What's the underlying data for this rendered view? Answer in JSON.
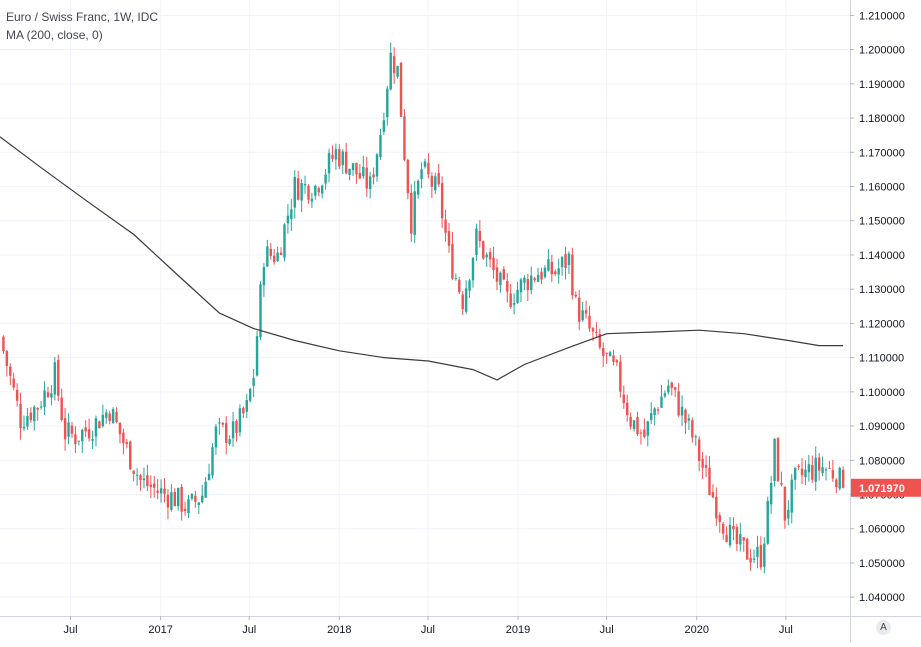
{
  "legend": {
    "title": "Euro / Swiss Franc, 1W, IDC",
    "indicator": "MA (200, close, 0)"
  },
  "auto_button": "A",
  "colors": {
    "up": "#26a69a",
    "down": "#ef5350",
    "ma": "#3b3b3b",
    "grid": "#f0f3fa",
    "axis_text": "#131722"
  },
  "price_badge": "1.071970",
  "chart_data": {
    "type": "candlestick",
    "title": "Euro / Swiss Franc, 1W, IDC",
    "x_ticks": [
      {
        "date": "2016-07-01",
        "label": "Jul"
      },
      {
        "date": "2017-01-01",
        "label": "2017"
      },
      {
        "date": "2017-07-01",
        "label": "Jul"
      },
      {
        "date": "2018-01-01",
        "label": "2018"
      },
      {
        "date": "2018-07-01",
        "label": "Jul"
      },
      {
        "date": "2019-01-01",
        "label": "2019"
      },
      {
        "date": "2019-07-01",
        "label": "Jul"
      },
      {
        "date": "2020-01-01",
        "label": "2020"
      },
      {
        "date": "2020-07-01",
        "label": "Jul"
      }
    ],
    "y_ticks": [
      "1.040000",
      "1.050000",
      "1.060000",
      "1.070000",
      "1.080000",
      "1.090000",
      "1.100000",
      "1.110000",
      "1.120000",
      "1.130000",
      "1.140000",
      "1.150000",
      "1.160000",
      "1.170000",
      "1.180000",
      "1.190000",
      "1.200000",
      "1.210000"
    ],
    "xlim": [
      "2016-02-08",
      "2020-11-09"
    ],
    "ylim": [
      1.0345,
      1.2145
    ],
    "last_price": 1.07197,
    "close_path": [
      [
        "2016-02-15",
        1.112
      ],
      [
        "2016-03-21",
        1.092
      ],
      [
        "2016-04-25",
        1.096
      ],
      [
        "2016-05-30",
        1.105
      ],
      [
        "2016-06-20",
        1.088
      ],
      [
        "2016-07-11",
        1.087
      ],
      [
        "2016-08-15",
        1.09
      ],
      [
        "2016-09-19",
        1.095
      ],
      [
        "2016-10-24",
        1.083
      ],
      [
        "2016-11-21",
        1.074
      ],
      [
        "2016-12-26",
        1.071
      ],
      [
        "2017-01-30",
        1.069
      ],
      [
        "2017-02-27",
        1.066
      ],
      [
        "2017-03-27",
        1.07
      ],
      [
        "2017-04-24",
        1.088
      ],
      [
        "2017-05-29",
        1.088
      ],
      [
        "2017-06-26",
        1.095
      ],
      [
        "2017-07-10",
        1.105
      ],
      [
        "2017-07-31",
        1.14
      ],
      [
        "2017-08-28",
        1.14
      ],
      [
        "2017-10-02",
        1.16
      ],
      [
        "2017-11-13",
        1.16
      ],
      [
        "2017-12-25",
        1.17
      ],
      [
        "2018-01-29",
        1.165
      ],
      [
        "2018-03-05",
        1.16
      ],
      [
        "2018-03-26",
        1.176
      ],
      [
        "2018-04-16",
        1.198
      ],
      [
        "2018-04-30",
        1.194
      ],
      [
        "2018-05-14",
        1.17
      ],
      [
        "2018-05-28",
        1.15
      ],
      [
        "2018-06-18",
        1.165
      ],
      [
        "2018-07-23",
        1.158
      ],
      [
        "2018-08-13",
        1.14
      ],
      [
        "2018-09-10",
        1.127
      ],
      [
        "2018-10-08",
        1.145
      ],
      [
        "2018-11-12",
        1.135
      ],
      [
        "2018-12-10",
        1.127
      ],
      [
        "2019-01-14",
        1.132
      ],
      [
        "2019-02-11",
        1.135
      ],
      [
        "2019-03-18",
        1.135
      ],
      [
        "2019-04-15",
        1.139
      ],
      [
        "2019-04-29",
        1.125
      ],
      [
        "2019-05-20",
        1.12
      ],
      [
        "2019-06-17",
        1.112
      ],
      [
        "2019-07-22",
        1.105
      ],
      [
        "2019-08-19",
        1.092
      ],
      [
        "2019-09-16",
        1.087
      ],
      [
        "2019-10-07",
        1.095
      ],
      [
        "2019-11-04",
        1.102
      ],
      [
        "2019-11-25",
        1.096
      ],
      [
        "2019-12-23",
        1.087
      ],
      [
        "2020-01-27",
        1.072
      ],
      [
        "2020-02-24",
        1.062
      ],
      [
        "2020-03-16",
        1.056
      ],
      [
        "2020-04-13",
        1.053
      ],
      [
        "2020-05-11",
        1.052
      ],
      [
        "2020-05-25",
        1.065
      ],
      [
        "2020-06-08",
        1.083
      ],
      [
        "2020-06-29",
        1.064
      ],
      [
        "2020-07-20",
        1.074
      ],
      [
        "2020-08-17",
        1.077
      ],
      [
        "2020-09-14",
        1.078
      ],
      [
        "2020-10-12",
        1.076
      ],
      [
        "2020-10-26",
        1.072
      ]
    ],
    "ma_series": {
      "name": "MA (200, close, 0)",
      "points": [
        [
          "2016-02-08",
          1.1745
        ],
        [
          "2016-05-02",
          1.1655
        ],
        [
          "2016-08-01",
          1.156
        ],
        [
          "2016-11-07",
          1.146
        ],
        [
          "2017-02-06",
          1.134
        ],
        [
          "2017-05-01",
          1.123
        ],
        [
          "2017-07-10",
          1.1185
        ],
        [
          "2017-10-02",
          1.115
        ],
        [
          "2018-01-01",
          1.112
        ],
        [
          "2018-04-02",
          1.11
        ],
        [
          "2018-07-02",
          1.109
        ],
        [
          "2018-10-01",
          1.1065
        ],
        [
          "2018-11-19",
          1.1035
        ],
        [
          "2019-01-14",
          1.108
        ],
        [
          "2019-04-15",
          1.113
        ],
        [
          "2019-07-01",
          1.117
        ],
        [
          "2019-10-07",
          1.1175
        ],
        [
          "2020-01-06",
          1.118
        ],
        [
          "2020-04-06",
          1.117
        ],
        [
          "2020-07-06",
          1.115
        ],
        [
          "2020-09-07",
          1.1135
        ],
        [
          "2020-10-26",
          1.1135
        ]
      ]
    },
    "grid": true,
    "y_axis_position": "right",
    "seed": 7
  }
}
